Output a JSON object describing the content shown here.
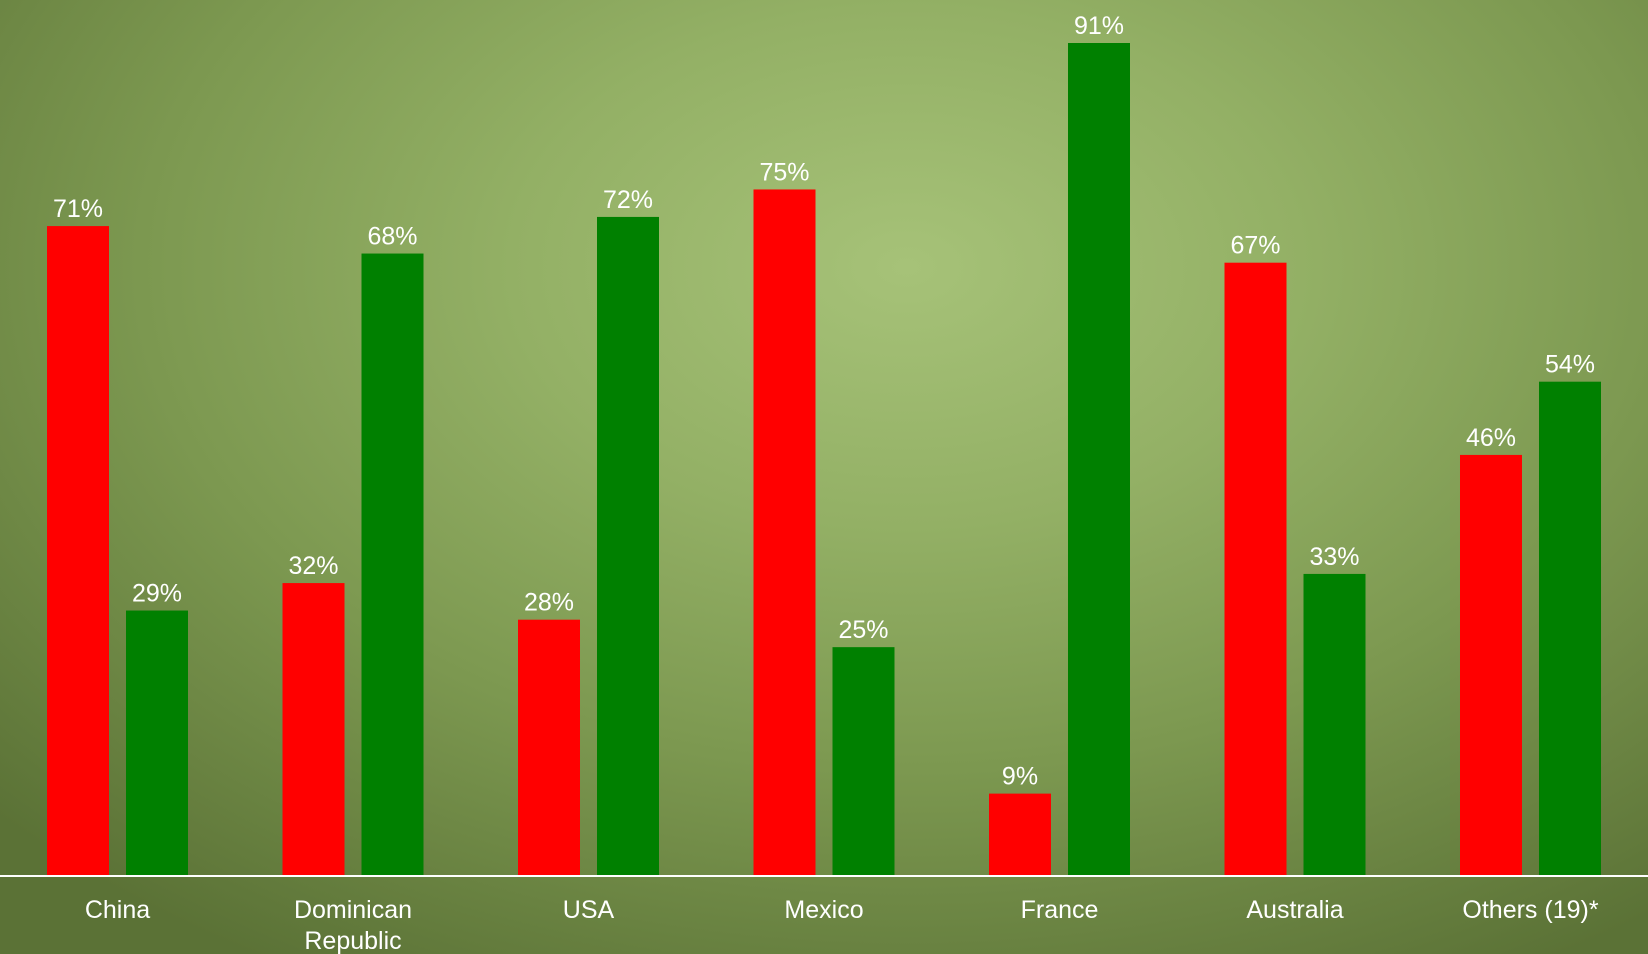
{
  "chart_data": {
    "type": "bar",
    "categories": [
      "China",
      "Dominican Republic",
      "USA",
      "Mexico",
      "France",
      "Australia",
      "Others (19)*"
    ],
    "category_lines": [
      [
        "China"
      ],
      [
        "Dominican",
        "Republic"
      ],
      [
        "USA"
      ],
      [
        "Mexico"
      ],
      [
        "France"
      ],
      [
        "Australia"
      ],
      [
        "Others (19)*"
      ]
    ],
    "series": [
      {
        "values": [
          71,
          32,
          28,
          75,
          9,
          67,
          46
        ],
        "labels": [
          "71%",
          "32%",
          "28%",
          "75%",
          "9%",
          "67%",
          "46%"
        ],
        "color": "#ff0000"
      },
      {
        "values": [
          29,
          68,
          72,
          25,
          91,
          33,
          54
        ],
        "labels": [
          "29%",
          "68%",
          "72%",
          "25%",
          "91%",
          "33%",
          "54%"
        ],
        "color": "#008000"
      }
    ],
    "ylim": [
      0,
      91
    ],
    "grid": false,
    "legend": "none",
    "axis_color": "#ffffff"
  }
}
